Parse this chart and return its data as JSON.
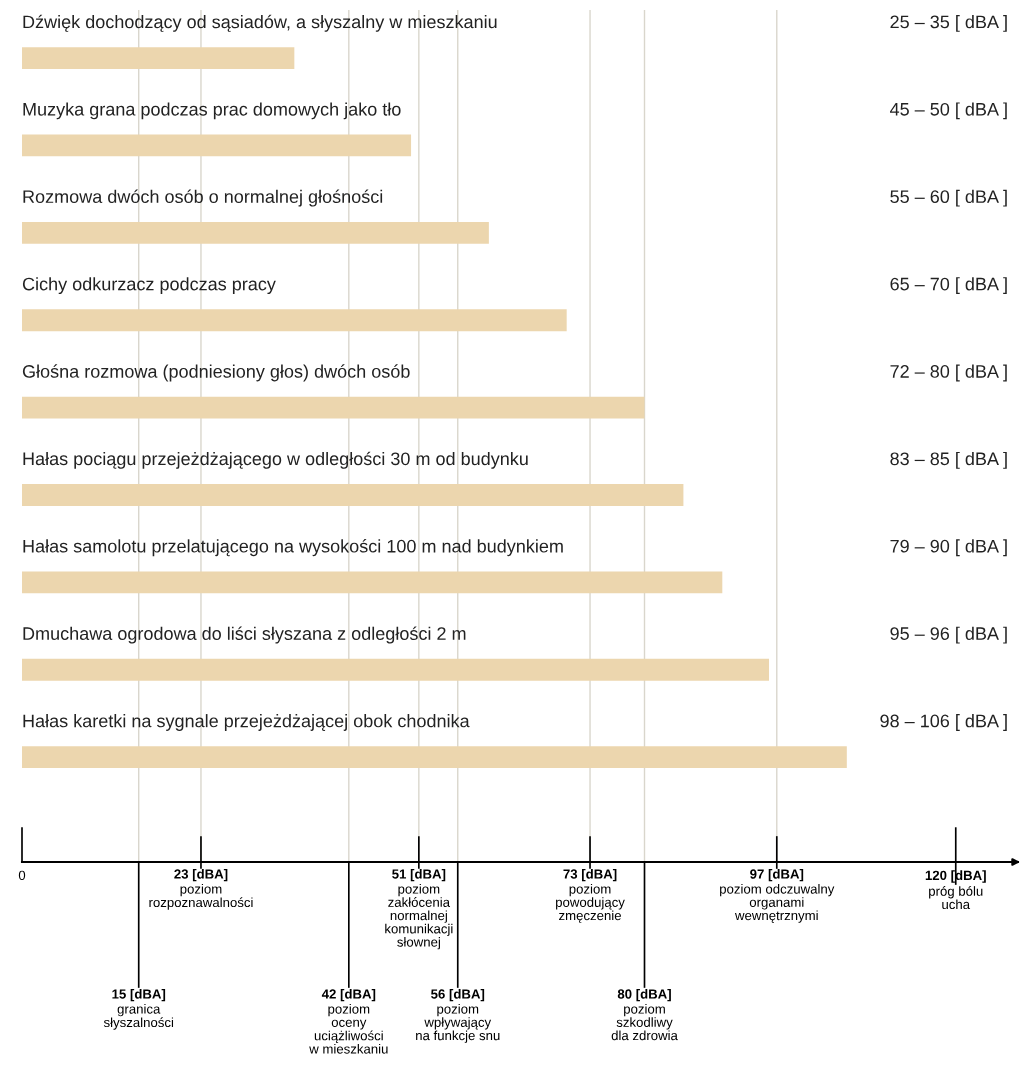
{
  "chart_data": {
    "type": "bar",
    "orientation": "horizontal",
    "color": "#ecd6ae",
    "categories": [
      "Dźwięk dochodzący od sąsiadów, a słyszalny w mieszkaniu",
      "Muzyka grana podczas prac domowych jako tło",
      "Rozmowa dwóch osób o normalnej głośności",
      "Cichy odkurzacz podczas pracy",
      "Głośna rozmowa (podniesiony głos) dwóch osób",
      "Hałas pociągu przejeżdżającego w odległości 30 m od budynku",
      "Hałas samolotu przelatującego na wysokości 100 m nad budynkiem",
      "Dmuchawa ogrodowa do liści słyszana z odległości 2 m",
      "Hałas karetki na sygnale przejeżdżającej obok chodnika"
    ],
    "values": [
      35,
      50,
      60,
      70,
      80,
      85,
      90,
      96,
      106
    ],
    "annotations": [
      "25 – 35 [ dBA ]",
      "45 – 50 [ dBA ]",
      "55 – 60 [ dBA ]",
      "65 – 70 [ dBA ]",
      "72 – 80 [ dBA ]",
      "83 – 85 [ dBA ]",
      "79 – 90 [ dBA ]",
      "95 – 96 [ dBA ]",
      "98 – 106 [ dBA ]"
    ],
    "xlim": [
      0,
      128
    ],
    "xticks": [
      0,
      {
        "value": 120,
        "label": "120 [dBA]"
      }
    ],
    "ref_lines": [
      {
        "axis": "x",
        "value": 15,
        "label": "15 [dBA]\ngranica\nsłyszalności",
        "color": "#d9d6cc"
      },
      {
        "axis": "x",
        "value": 23,
        "label": "23 [dBA]\npoziom\nrozpoznawalności",
        "color": "#d9d6cc"
      },
      {
        "axis": "x",
        "value": 42,
        "label": "42 [dBA]\npoziom\noceny\nuciążliwości\nw mieszkaniu",
        "color": "#d9d6cc"
      },
      {
        "axis": "x",
        "value": 51,
        "label": "51 [dBA]\npoziom\nzakłócenia\nnormalnej\nkomunikacji\nsłownej",
        "color": "#d9d6cc"
      },
      {
        "axis": "x",
        "value": 56,
        "label": "56 [dBA]\npoziom\nwpływający\nna funkcje snu",
        "color": "#d9d6cc"
      },
      {
        "axis": "x",
        "value": 73,
        "label": "73 [dBA]\npoziom\npowodujący\nzmęczenie",
        "color": "#d9d6cc"
      },
      {
        "axis": "x",
        "value": 80,
        "label": "80 [dBA]\npoziom\nszkodliwy\ndla zdrowia",
        "color": "#d9d6cc"
      },
      {
        "axis": "x",
        "value": 97,
        "label": "97 [dBA]\npoziom odczuwalny\norganami\nwewnętrznymi",
        "color": "#d9d6cc"
      },
      {
        "axis": "x",
        "value": 120,
        "label": "próg bólu\nucha"
      }
    ]
  }
}
